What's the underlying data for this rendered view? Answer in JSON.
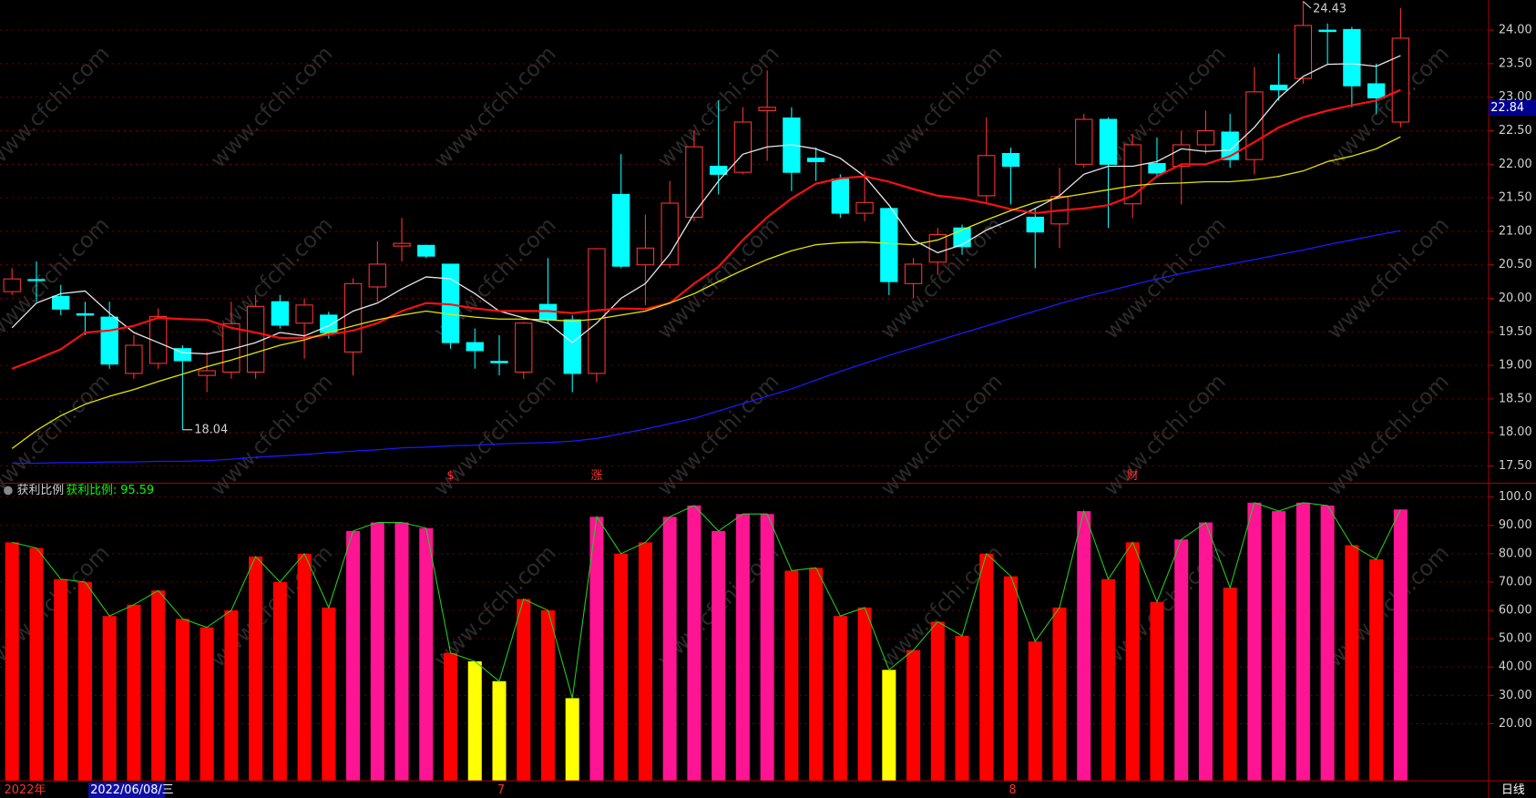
{
  "chart_data": [
    {
      "type": "candlestick",
      "open": [
        20.1,
        20.28,
        20.03,
        19.77,
        19.72,
        18.88,
        19.03,
        19.25,
        18.85,
        18.9,
        18.9,
        19.95,
        19.63,
        19.75,
        19.2,
        20.17,
        20.78,
        20.79,
        20.51,
        19.34,
        19.06,
        18.9,
        19.91,
        19.68,
        18.88,
        21.55,
        20.5,
        20.5,
        21.21,
        21.97,
        21.88,
        22.8,
        22.69,
        22.09,
        21.78,
        21.27,
        21.34,
        20.22,
        20.54,
        21.05,
        21.53,
        22.16,
        21.21,
        21.11,
        22.0,
        22.67,
        21.41,
        22.01,
        21.97,
        22.29,
        22.48,
        22.07,
        23.18,
        23.28,
        24.0,
        24.01,
        23.2,
        22.63
      ],
      "high": [
        20.45,
        20.55,
        20.2,
        19.95,
        19.95,
        19.45,
        19.85,
        19.3,
        19.2,
        19.95,
        20.05,
        20.05,
        20.0,
        19.8,
        20.3,
        20.85,
        21.2,
        20.8,
        20.51,
        19.55,
        19.45,
        19.65,
        20.6,
        19.75,
        20.75,
        22.15,
        21.25,
        21.75,
        22.5,
        22.95,
        22.85,
        23.4,
        22.85,
        22.25,
        21.85,
        21.9,
        21.35,
        20.6,
        21.05,
        21.1,
        22.7,
        22.25,
        21.35,
        21.95,
        22.75,
        22.7,
        22.45,
        22.4,
        22.5,
        22.8,
        22.75,
        23.45,
        23.65,
        24.43,
        24.1,
        24.05,
        23.5,
        24.33
      ],
      "low": [
        20.05,
        19.95,
        19.75,
        19.45,
        18.95,
        18.8,
        18.95,
        18.04,
        18.6,
        18.8,
        18.8,
        19.55,
        19.1,
        19.4,
        18.85,
        19.95,
        20.55,
        20.6,
        19.25,
        18.95,
        18.85,
        18.8,
        19.62,
        18.6,
        18.75,
        20.45,
        19.9,
        20.45,
        21.15,
        21.55,
        21.85,
        22.05,
        21.6,
        21.75,
        21.2,
        21.15,
        20.05,
        20.0,
        20.35,
        20.65,
        21.4,
        21.4,
        20.45,
        20.75,
        21.95,
        21.05,
        21.2,
        21.8,
        21.4,
        22.15,
        21.95,
        21.85,
        22.95,
        23.2,
        23.5,
        22.85,
        22.75,
        22.55
      ],
      "close": [
        20.29,
        20.27,
        19.84,
        19.75,
        19.02,
        19.3,
        19.73,
        19.07,
        18.92,
        19.62,
        19.88,
        19.6,
        19.9,
        19.49,
        20.22,
        20.51,
        20.82,
        20.63,
        19.34,
        19.22,
        19.04,
        19.63,
        19.68,
        18.88,
        20.74,
        20.48,
        20.75,
        21.42,
        22.26,
        21.85,
        22.63,
        22.85,
        21.88,
        22.04,
        21.27,
        21.43,
        20.25,
        20.51,
        20.95,
        20.77,
        22.13,
        21.97,
        20.99,
        21.52,
        22.67,
        22.0,
        22.29,
        21.87,
        22.29,
        22.5,
        22.07,
        23.08,
        23.11,
        24.07,
        23.98,
        23.17,
        22.99,
        23.88
      ],
      "up_color": "#ff3232",
      "down_color": "#00ffff",
      "series": [
        {
          "color": "#e8e8e8",
          "values": [
            19.56,
            19.93,
            20.07,
            20.11,
            19.78,
            19.49,
            19.34,
            19.19,
            19.17,
            19.24,
            19.34,
            19.49,
            19.44,
            19.59,
            19.81,
            19.93,
            20.14,
            20.32,
            20.29,
            20.07,
            19.81,
            19.71,
            19.63,
            19.34,
            19.63,
            20.0,
            20.22,
            20.66,
            21.27,
            21.75,
            22.15,
            22.26,
            22.29,
            22.23,
            22.09,
            21.82,
            21.39,
            20.87,
            20.68,
            20.8,
            21.02,
            21.17,
            21.34,
            21.53,
            21.85,
            21.97,
            21.97,
            22.04,
            22.23,
            22.19,
            22.21,
            22.55,
            22.99,
            23.31,
            23.49,
            23.5,
            23.46,
            23.62
          ]
        },
        {
          "color": "#ff1010",
          "values": [
            18.95,
            19.09,
            19.24,
            19.49,
            19.52,
            19.59,
            19.71,
            19.69,
            19.68,
            19.56,
            19.49,
            19.41,
            19.41,
            19.46,
            19.52,
            19.63,
            19.81,
            19.93,
            19.91,
            19.85,
            19.81,
            19.81,
            19.81,
            19.78,
            19.82,
            19.85,
            19.84,
            19.93,
            20.22,
            20.47,
            20.87,
            21.21,
            21.49,
            21.71,
            21.79,
            21.82,
            21.74,
            21.63,
            21.53,
            21.49,
            21.42,
            21.33,
            21.27,
            21.31,
            21.34,
            21.39,
            21.53,
            21.82,
            22.0,
            22.0,
            22.12,
            22.33,
            22.55,
            22.7,
            22.8,
            22.88,
            22.95,
            23.11
          ]
        },
        {
          "color": "#e6e600",
          "values": [
            17.76,
            18.03,
            18.25,
            18.42,
            18.54,
            18.64,
            18.76,
            18.87,
            18.98,
            19.08,
            19.19,
            19.3,
            19.38,
            19.49,
            19.59,
            19.68,
            19.75,
            19.81,
            19.76,
            19.72,
            19.69,
            19.69,
            19.68,
            19.66,
            19.69,
            19.75,
            19.81,
            19.93,
            20.07,
            20.25,
            20.42,
            20.58,
            20.71,
            20.8,
            20.83,
            20.84,
            20.82,
            20.8,
            20.87,
            21.02,
            21.17,
            21.31,
            21.43,
            21.5,
            21.56,
            21.62,
            21.68,
            21.71,
            21.72,
            21.74,
            21.74,
            21.77,
            21.82,
            21.9,
            22.04,
            22.12,
            22.23,
            22.41
          ]
        },
        {
          "color": "#1a1aff",
          "values": [
            17.54,
            17.54,
            17.55,
            17.55,
            17.56,
            17.56,
            17.57,
            17.57,
            17.58,
            17.6,
            17.63,
            17.65,
            17.67,
            17.7,
            17.72,
            17.74,
            17.77,
            17.78,
            17.8,
            17.81,
            17.83,
            17.84,
            17.85,
            17.87,
            17.91,
            17.98,
            18.05,
            18.13,
            18.21,
            18.32,
            18.43,
            18.54,
            18.65,
            18.78,
            18.91,
            19.03,
            19.15,
            19.26,
            19.37,
            19.48,
            19.59,
            19.7,
            19.81,
            19.92,
            20.02,
            20.11,
            20.2,
            20.29,
            20.37,
            20.44,
            20.51,
            20.58,
            20.65,
            20.72,
            20.8,
            20.87,
            20.94,
            21.01
          ]
        }
      ],
      "categories": [
        "2022年",
        null,
        null,
        null,
        null,
        null,
        null,
        null,
        null,
        null,
        null,
        null,
        null,
        null,
        null,
        null,
        null,
        null,
        null,
        null,
        "7",
        null,
        null,
        null,
        null,
        null,
        null,
        null,
        null,
        null,
        null,
        null,
        null,
        null,
        null,
        null,
        null,
        null,
        null,
        null,
        null,
        "8",
        null,
        null,
        null,
        null,
        null,
        null,
        null,
        null,
        null,
        null,
        null,
        null,
        null,
        null,
        null,
        null
      ],
      "event_labels": [
        null,
        null,
        null,
        null,
        null,
        null,
        null,
        null,
        null,
        null,
        null,
        null,
        null,
        null,
        null,
        null,
        null,
        null,
        "$",
        null,
        null,
        null,
        null,
        null,
        "涨",
        null,
        null,
        null,
        null,
        null,
        null,
        null,
        null,
        null,
        null,
        null,
        null,
        null,
        null,
        null,
        null,
        null,
        null,
        null,
        null,
        null,
        "财",
        null,
        null,
        null,
        null,
        null,
        null,
        null,
        null,
        null,
        null,
        null
      ],
      "event_color": "#ff3232",
      "high_label": 24.43,
      "low_label": 18.04,
      "last_price": 22.84,
      "cursor_date": "2022/06/08/三",
      "period": "日线",
      "watermark": "www.cfchi.com",
      "ylim": [
        17.25,
        24.45
      ],
      "yticks": [
        {
          "value": 17.5,
          "label": "17.50"
        },
        {
          "value": 18,
          "label": "18.00"
        },
        {
          "value": 18.5,
          "label": "18.50"
        },
        {
          "value": 19,
          "label": "19.00"
        },
        {
          "value": 19.5,
          "label": "19.50"
        },
        {
          "value": 20,
          "label": "20.00"
        },
        {
          "value": 20.5,
          "label": "20.50"
        },
        {
          "value": 21,
          "label": "21.00"
        },
        {
          "value": 21.5,
          "label": "21.50"
        },
        {
          "value": 22,
          "label": "22.00"
        },
        {
          "value": 22.5,
          "label": "22.50"
        },
        {
          "value": 23,
          "label": "23.00"
        },
        {
          "value": 23.5,
          "label": "23.50"
        },
        {
          "value": 24,
          "label": "24.00"
        }
      ],
      "grid": true
    },
    {
      "type": "bar",
      "title": "获利比例",
      "readout": "获利比例: 95.59",
      "readout_color": "#00ff00",
      "values": [
        84,
        82,
        71,
        70,
        58,
        62,
        67,
        57,
        54,
        60,
        79,
        70,
        80,
        61,
        88,
        91,
        91,
        89,
        45,
        42,
        35,
        64,
        60,
        29,
        93,
        80,
        84,
        93,
        97,
        88,
        94,
        94,
        74,
        75,
        58,
        61,
        39,
        46,
        56,
        51,
        80,
        72,
        49,
        61,
        95,
        71,
        84,
        63,
        85,
        91,
        68,
        98,
        95,
        98,
        97,
        83,
        78,
        95.59
      ],
      "colors": [
        "#ff0000",
        "#ff0000",
        "#ff0000",
        "#ff0000",
        "#ff0000",
        "#ff0000",
        "#ff0000",
        "#ff0000",
        "#ff0000",
        "#ff0000",
        "#ff0000",
        "#ff0000",
        "#ff0000",
        "#ff0000",
        "#ff1493",
        "#ff1493",
        "#ff1493",
        "#ff1493",
        "#ff0000",
        "#ffff00",
        "#ffff00",
        "#ff0000",
        "#ff0000",
        "#ffff00",
        "#ff1493",
        "#ff0000",
        "#ff0000",
        "#ff1493",
        "#ff1493",
        "#ff1493",
        "#ff1493",
        "#ff1493",
        "#ff0000",
        "#ff0000",
        "#ff0000",
        "#ff0000",
        "#ffff00",
        "#ff0000",
        "#ff0000",
        "#ff0000",
        "#ff0000",
        "#ff0000",
        "#ff0000",
        "#ff0000",
        "#ff1493",
        "#ff0000",
        "#ff0000",
        "#ff0000",
        "#ff1493",
        "#ff1493",
        "#ff0000",
        "#ff1493",
        "#ff1493",
        "#ff1493",
        "#ff1493",
        "#ff0000",
        "#ff0000",
        "#ff1493"
      ],
      "line_color": "#22cc22",
      "ylim": [
        0,
        104
      ],
      "yticks": [
        {
          "value": 20,
          "label": "20.00"
        },
        {
          "value": 30,
          "label": "30.00"
        },
        {
          "value": 40,
          "label": "40.00"
        },
        {
          "value": 50,
          "label": "50.00"
        },
        {
          "value": 60,
          "label": "60.00"
        },
        {
          "value": 70,
          "label": "70.00"
        },
        {
          "value": 80,
          "label": "80.00"
        },
        {
          "value": 90,
          "label": "90.00"
        },
        {
          "value": 100,
          "label": "100.0"
        }
      ],
      "grid": true
    }
  ]
}
